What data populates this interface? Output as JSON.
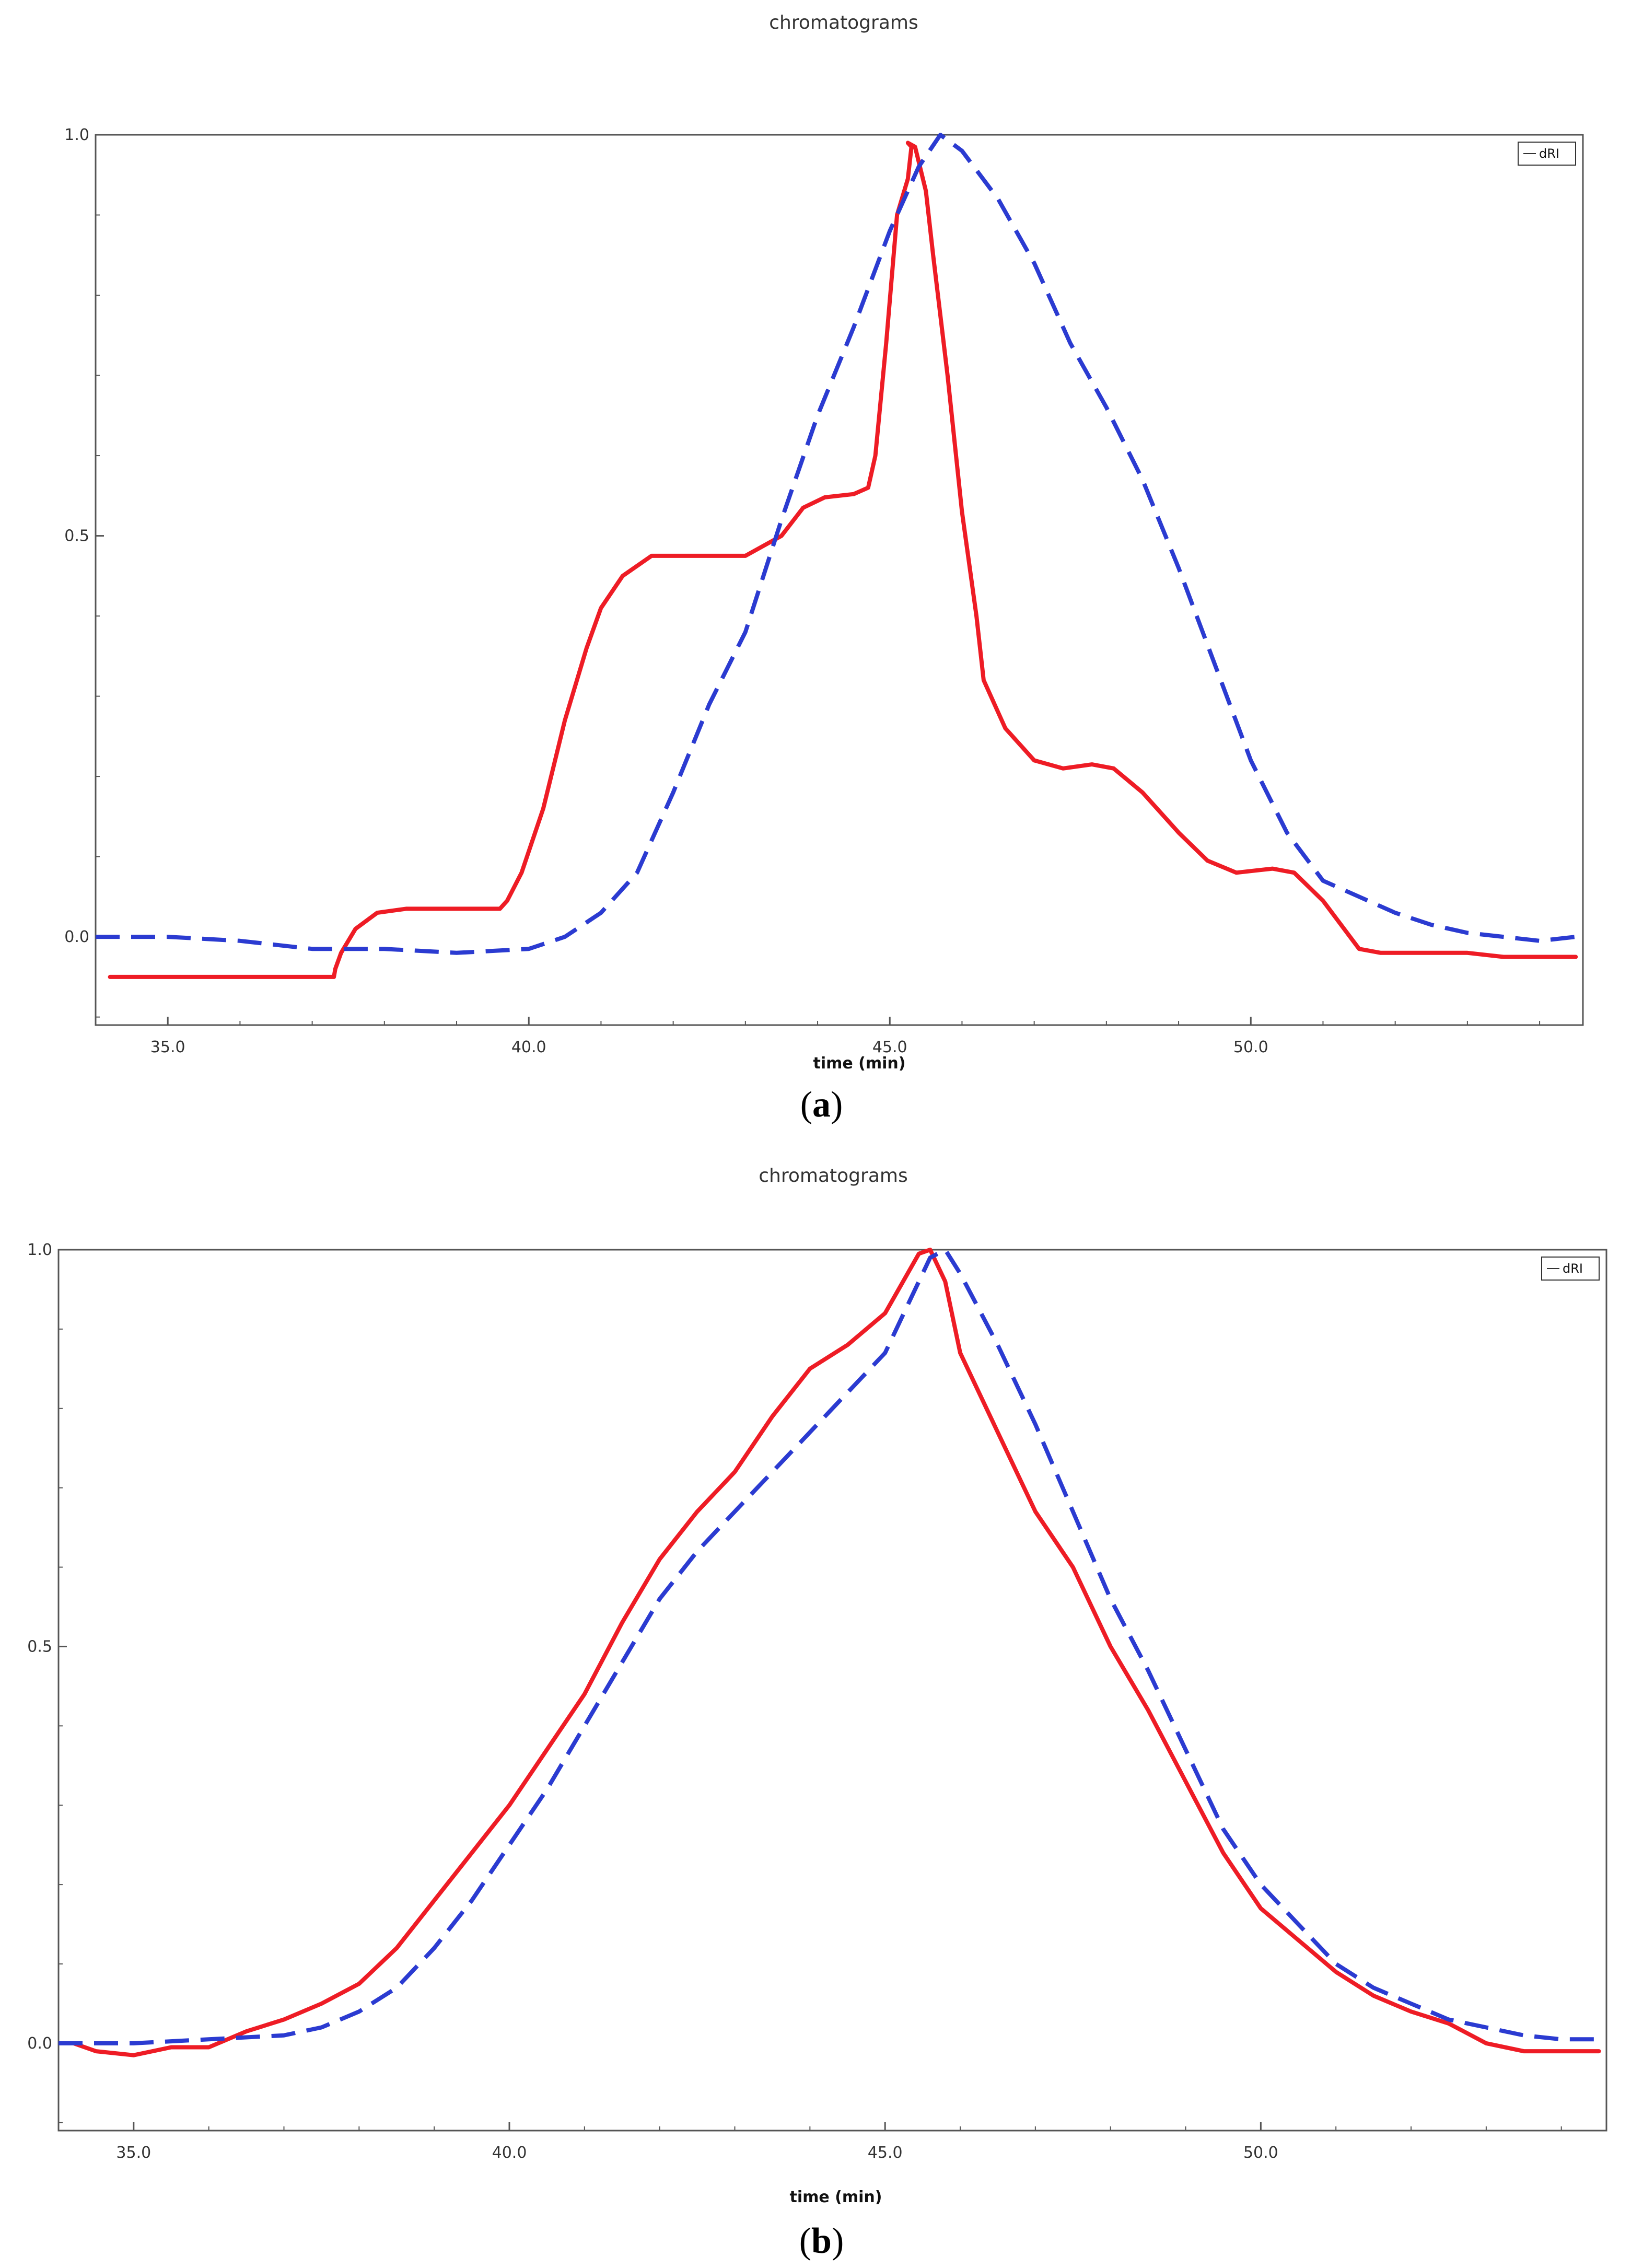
{
  "chart_data": [
    {
      "type": "line",
      "title": "chromatograms",
      "xlabel": "time (min)",
      "ylabel": "",
      "xlim": [
        34.0,
        54.6
      ],
      "ylim": [
        -0.11,
        1.0
      ],
      "xticks": [
        "35.0",
        "40.0",
        "45.0",
        "50.0"
      ],
      "yticks": [
        "0.0",
        "0.5",
        "1.0"
      ],
      "legend": [
        "dRI"
      ],
      "caption_label": "a",
      "series": [
        {
          "name": "red solid",
          "color": "#ee1c25",
          "style": "solid",
          "x": [
            34.2,
            37.3,
            37.32,
            37.4,
            37.6,
            37.9,
            38.3,
            38.8,
            39.6,
            39.7,
            39.9,
            40.2,
            40.5,
            40.8,
            41.0,
            41.3,
            41.7,
            42.3,
            43.0,
            43.5,
            43.8,
            44.1,
            44.5,
            44.7,
            44.8,
            44.95,
            45.1,
            45.25,
            45.3,
            45.25,
            45.35,
            45.5,
            45.6,
            45.8,
            46.0,
            46.2,
            46.3,
            46.6,
            47.0,
            47.4,
            47.8,
            48.1,
            48.5,
            49.0,
            49.4,
            49.8,
            50.3,
            50.6,
            51.0,
            51.5,
            51.8,
            52.5,
            53.0,
            53.5,
            54.5
          ],
          "y": [
            -0.05,
            -0.05,
            -0.04,
            -0.02,
            0.01,
            0.03,
            0.035,
            0.035,
            0.035,
            0.045,
            0.08,
            0.16,
            0.27,
            0.36,
            0.41,
            0.45,
            0.475,
            0.475,
            0.475,
            0.5,
            0.535,
            0.548,
            0.552,
            0.56,
            0.6,
            0.74,
            0.9,
            0.945,
            0.985,
            0.99,
            0.985,
            0.93,
            0.85,
            0.7,
            0.53,
            0.4,
            0.32,
            0.26,
            0.22,
            0.21,
            0.215,
            0.21,
            0.18,
            0.13,
            0.095,
            0.08,
            0.085,
            0.08,
            0.045,
            -0.015,
            -0.02,
            -0.02,
            -0.02,
            -0.025,
            -0.025
          ]
        },
        {
          "name": "blue dashed",
          "color": "#2b3bd1",
          "style": "dashed",
          "x": [
            34.0,
            35.0,
            36.0,
            37.0,
            38.0,
            39.0,
            40.0,
            40.5,
            41.0,
            41.5,
            42.0,
            42.5,
            43.0,
            43.5,
            44.0,
            44.5,
            45.0,
            45.4,
            45.7,
            46.0,
            46.5,
            47.0,
            47.5,
            48.0,
            48.5,
            49.0,
            49.5,
            50.0,
            50.5,
            51.0,
            51.5,
            52.0,
            52.5,
            53.0,
            53.5,
            54.0,
            54.5
          ],
          "y": [
            0.0,
            0.0,
            -0.005,
            -0.015,
            -0.015,
            -0.02,
            -0.015,
            0.0,
            0.03,
            0.08,
            0.18,
            0.29,
            0.38,
            0.52,
            0.65,
            0.76,
            0.88,
            0.96,
            1.0,
            0.98,
            0.92,
            0.84,
            0.74,
            0.66,
            0.57,
            0.46,
            0.34,
            0.22,
            0.13,
            0.07,
            0.05,
            0.03,
            0.015,
            0.005,
            0.0,
            -0.005,
            0.0
          ]
        }
      ]
    },
    {
      "type": "line",
      "title": "chromatograms",
      "xlabel": "time (min)",
      "ylabel": "",
      "xlim": [
        34.0,
        54.6
      ],
      "ylim": [
        -0.11,
        1.0
      ],
      "xticks": [
        "35.0",
        "40.0",
        "45.0",
        "50.0"
      ],
      "yticks": [
        "0.0",
        "0.5",
        "1.0"
      ],
      "legend": [
        "dRI"
      ],
      "caption_label": "b",
      "series": [
        {
          "name": "red solid",
          "color": "#ee1c25",
          "style": "solid",
          "x": [
            34.2,
            34.5,
            35.0,
            35.5,
            36.0,
            36.5,
            37.0,
            37.5,
            38.0,
            38.5,
            39.0,
            39.5,
            40.0,
            40.5,
            41.0,
            41.5,
            42.0,
            42.5,
            43.0,
            43.5,
            44.0,
            44.5,
            45.0,
            45.3,
            45.45,
            45.6,
            45.8,
            46.0,
            46.5,
            47.0,
            47.5,
            48.0,
            48.5,
            49.0,
            49.5,
            50.0,
            50.5,
            51.0,
            51.5,
            52.0,
            52.5,
            53.0,
            53.5,
            53.8,
            54.5
          ],
          "y": [
            0.0,
            -0.01,
            -0.015,
            -0.005,
            -0.005,
            0.015,
            0.03,
            0.05,
            0.075,
            0.12,
            0.18,
            0.24,
            0.3,
            0.37,
            0.44,
            0.53,
            0.61,
            0.67,
            0.72,
            0.79,
            0.85,
            0.88,
            0.92,
            0.97,
            0.995,
            1.0,
            0.96,
            0.87,
            0.77,
            0.67,
            0.6,
            0.5,
            0.42,
            0.33,
            0.24,
            0.17,
            0.13,
            0.09,
            0.06,
            0.04,
            0.025,
            0.0,
            -0.01,
            -0.01,
            -0.01
          ]
        },
        {
          "name": "blue dashed",
          "color": "#2b3bd1",
          "style": "dashed",
          "x": [
            34.0,
            35.0,
            36.0,
            37.0,
            37.5,
            38.0,
            38.5,
            39.0,
            39.5,
            40.0,
            40.5,
            41.0,
            41.5,
            42.0,
            42.5,
            43.0,
            43.5,
            44.0,
            44.5,
            45.0,
            45.3,
            45.6,
            45.8,
            46.0,
            46.5,
            47.0,
            47.5,
            48.0,
            48.5,
            49.0,
            49.5,
            50.0,
            50.5,
            51.0,
            51.5,
            52.0,
            52.5,
            53.0,
            53.5,
            54.0,
            54.5
          ],
          "y": [
            0.0,
            0.0,
            0.005,
            0.01,
            0.02,
            0.04,
            0.07,
            0.12,
            0.18,
            0.25,
            0.32,
            0.4,
            0.48,
            0.56,
            0.62,
            0.67,
            0.72,
            0.77,
            0.82,
            0.87,
            0.93,
            0.99,
            1.0,
            0.97,
            0.88,
            0.78,
            0.67,
            0.56,
            0.47,
            0.37,
            0.27,
            0.2,
            0.15,
            0.1,
            0.07,
            0.05,
            0.03,
            0.02,
            0.01,
            0.005,
            0.005
          ]
        }
      ]
    }
  ]
}
